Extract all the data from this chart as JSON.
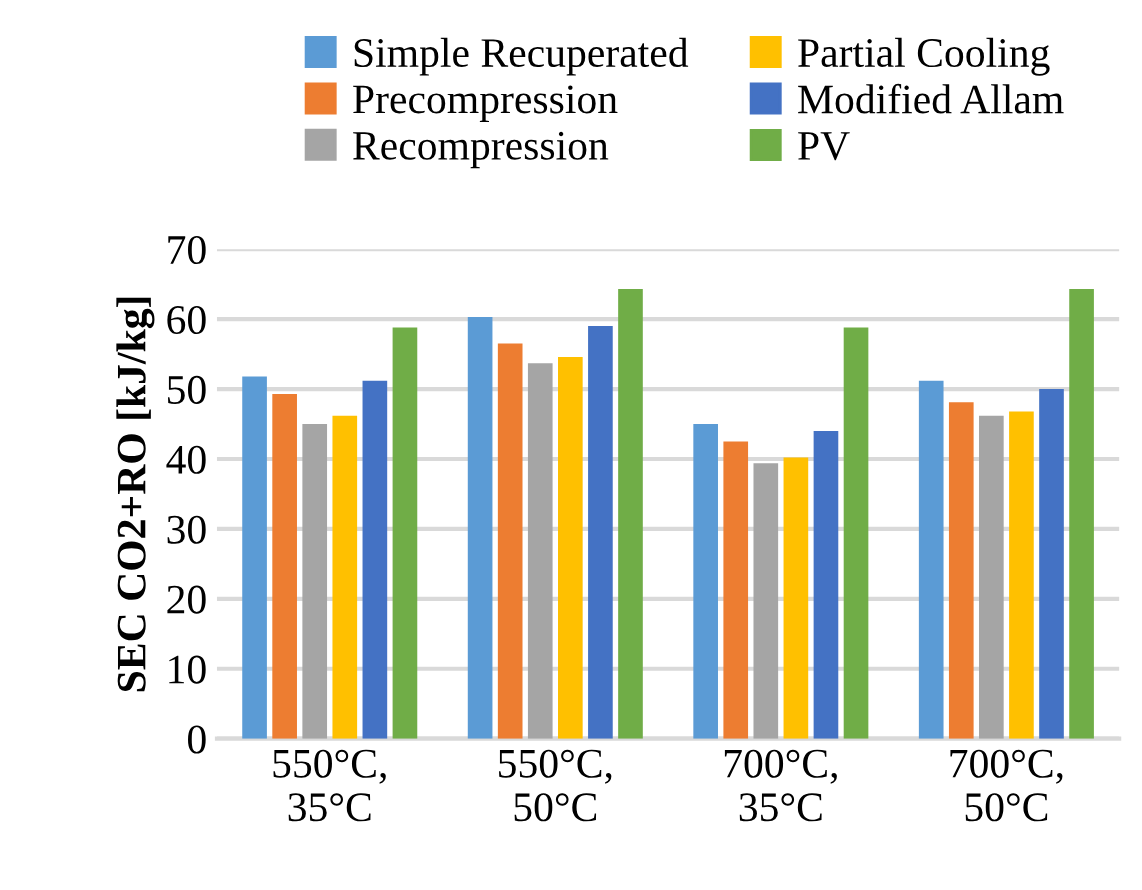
{
  "chart_data": {
    "type": "bar",
    "ylabel": "SEC CO2+RO [kJ/kg]",
    "categories": [
      "550°C,\n35°C",
      "550°C,\n50°C",
      "700°C,\n35°C",
      "700°C,\n50°C"
    ],
    "series": [
      {
        "name": "Simple Recuperated",
        "color": "#5b9bd5",
        "values": [
          51.8,
          60.3,
          45,
          51.2
        ]
      },
      {
        "name": "Precompression",
        "color": "#ed7d31",
        "values": [
          49.3,
          56.5,
          42.5,
          48.1
        ]
      },
      {
        "name": "Recompression",
        "color": "#a5a5a5",
        "values": [
          45,
          53.7,
          39.4,
          46.2
        ]
      },
      {
        "name": "Partial Cooling",
        "color": "#ffc000",
        "values": [
          46.2,
          54.6,
          40.2,
          46.8
        ]
      },
      {
        "name": "Modified Allam",
        "color": "#4472c4",
        "values": [
          51.2,
          59,
          44,
          50
        ]
      },
      {
        "name": "PV",
        "color": "#70ad47",
        "values": [
          58.8,
          64.3,
          58.8,
          64.3
        ]
      }
    ],
    "ylim": [
      0,
      70
    ],
    "yticks": [
      0,
      10,
      20,
      30,
      40,
      50,
      60,
      70
    ],
    "grid": "y",
    "legend": "top"
  }
}
